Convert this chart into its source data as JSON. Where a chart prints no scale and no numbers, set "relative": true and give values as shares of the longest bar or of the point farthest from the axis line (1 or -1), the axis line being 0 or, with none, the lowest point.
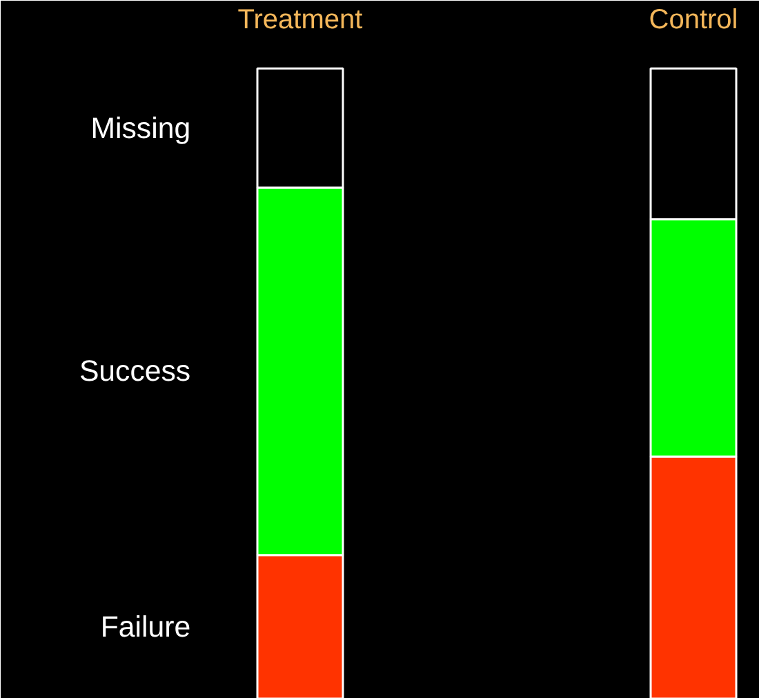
{
  "chart_data": {
    "type": "bar",
    "stacked": true,
    "relative": true,
    "categories": [
      "Treatment",
      "Control"
    ],
    "series": [
      {
        "name": "Failure",
        "color": "#ff3300",
        "values": [
          0.228,
          0.384
        ]
      },
      {
        "name": "Success",
        "color": "#00ff00",
        "values": [
          0.583,
          0.377
        ]
      },
      {
        "name": "Missing",
        "color": "#000000",
        "values": [
          0.189,
          0.239
        ]
      }
    ]
  }
}
